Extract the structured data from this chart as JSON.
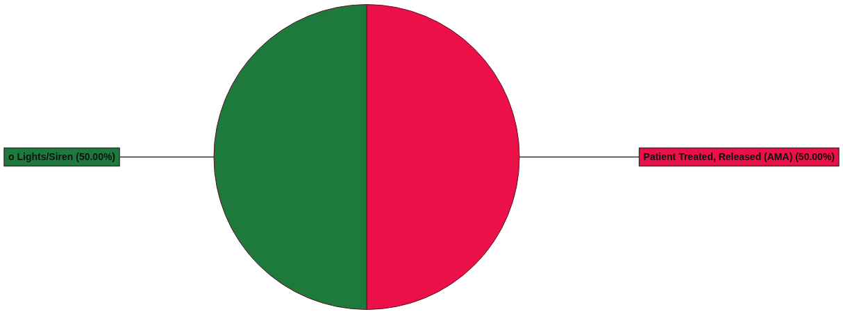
{
  "chart_data": {
    "type": "pie",
    "categories": [
      "Patient Treated, Released (AMA)",
      "o Lights/Siren"
    ],
    "values": [
      50,
      50
    ],
    "colors": [
      "#ec1048",
      "#1e7a3c"
    ],
    "value_labels": [
      "(50.00%)",
      "(50.00%)"
    ]
  }
}
